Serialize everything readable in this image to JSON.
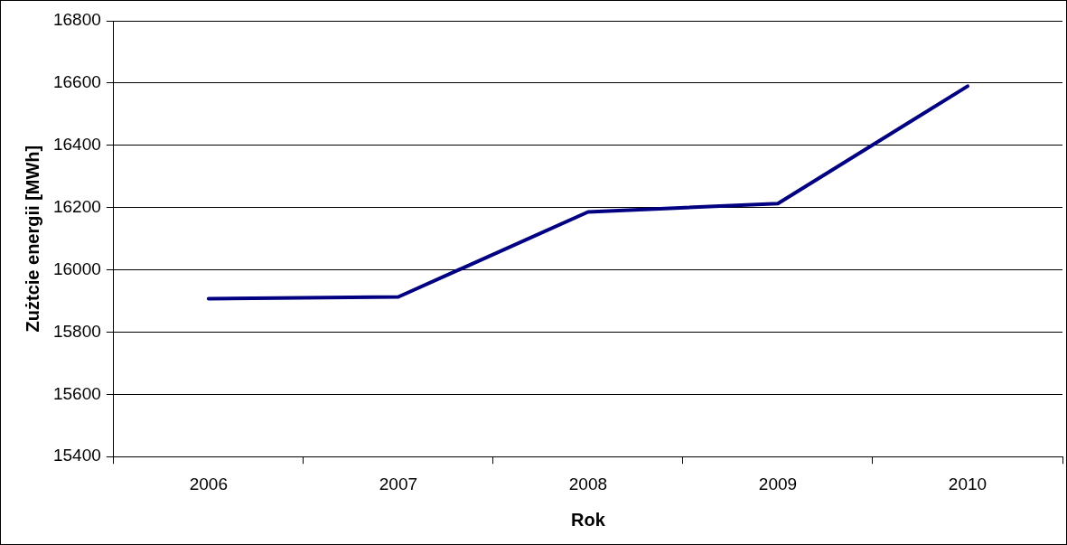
{
  "chart_data": {
    "type": "line",
    "xlabel": "Rok",
    "ylabel": "Zużtcie energii [MWh]",
    "categories": [
      "2006",
      "2007",
      "2008",
      "2009",
      "2010"
    ],
    "series": [
      {
        "color": "#000080",
        "values": [
          15907,
          15913,
          16186,
          16213,
          16590
        ]
      }
    ],
    "ylim": [
      15400,
      16800
    ],
    "yticks": [
      15400,
      15600,
      15800,
      16000,
      16200,
      16400,
      16600,
      16800
    ],
    "grid": "y",
    "legend": false,
    "marker": "none",
    "line_style": "solid"
  }
}
